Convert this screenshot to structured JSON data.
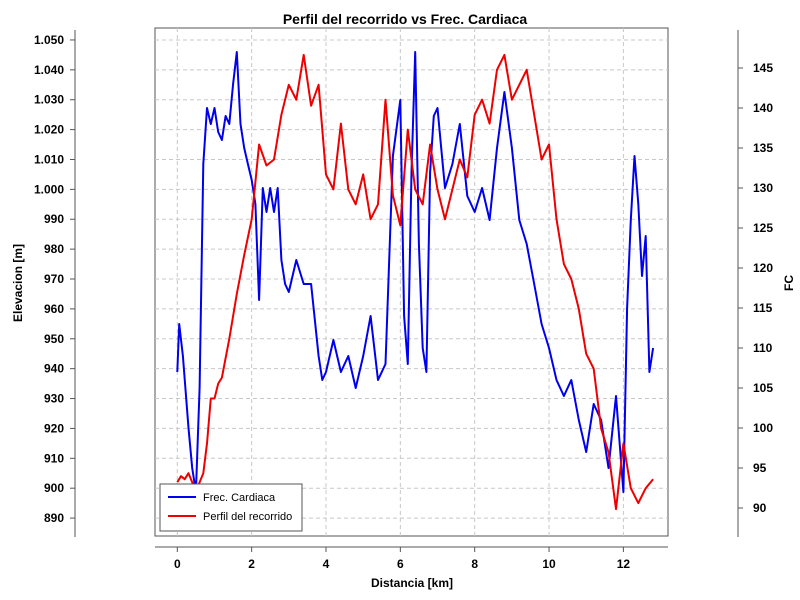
{
  "chart_data": {
    "type": "line",
    "title": "Perfil del recorrido vs Frec. Cardiaca",
    "xlabel": "Distancia [km]",
    "ylabel_left": "Elevacion [m]",
    "ylabel_right": "FC",
    "xlim": [
      -0.6,
      13.2
    ],
    "ylim_left": [
      884,
      1054
    ],
    "ylim_right": [
      86.5,
      150
    ],
    "x_ticks": [
      "0",
      "2",
      "4",
      "6",
      "8",
      "10",
      "12"
    ],
    "y_left_ticks": [
      "890",
      "900",
      "910",
      "920",
      "930",
      "940",
      "950",
      "960",
      "970",
      "980",
      "990",
      "1.000",
      "1.010",
      "1.020",
      "1.030",
      "1.040",
      "1.050"
    ],
    "y_right_ticks": [
      "90",
      "95",
      "100",
      "105",
      "110",
      "115",
      "120",
      "125",
      "130",
      "135",
      "140",
      "145"
    ],
    "grid": true,
    "legend_position": "bottom-left",
    "series": [
      {
        "name": "Frec. Cardiaca",
        "axis": "right",
        "color": "#0000ee",
        "x": [
          0,
          0.05,
          0.15,
          0.3,
          0.4,
          0.5,
          0.6,
          0.7,
          0.8,
          0.9,
          1.0,
          1.1,
          1.2,
          1.3,
          1.4,
          1.5,
          1.6,
          1.7,
          1.8,
          1.9,
          2.0,
          2.1,
          2.2,
          2.3,
          2.4,
          2.5,
          2.6,
          2.7,
          2.8,
          2.9,
          3.0,
          3.2,
          3.4,
          3.6,
          3.8,
          3.9,
          4.0,
          4.2,
          4.4,
          4.6,
          4.8,
          5.0,
          5.2,
          5.4,
          5.6,
          5.8,
          6.0,
          6.1,
          6.2,
          6.3,
          6.4,
          6.5,
          6.6,
          6.7,
          6.8,
          6.9,
          7.0,
          7.1,
          7.2,
          7.4,
          7.6,
          7.8,
          8.0,
          8.2,
          8.4,
          8.6,
          8.8,
          9.0,
          9.2,
          9.4,
          9.6,
          9.8,
          10.0,
          10.2,
          10.4,
          10.6,
          10.8,
          11.0,
          11.2,
          11.4,
          11.6,
          11.8,
          12.0,
          12.1,
          12.2,
          12.3,
          12.4,
          12.5,
          12.6,
          12.7,
          12.8
        ],
        "values": [
          107,
          113,
          109,
          100,
          95,
          92,
          105,
          133,
          140,
          138,
          140,
          137,
          136,
          139,
          138,
          143,
          147,
          138,
          135,
          133,
          131,
          128,
          116,
          130,
          127,
          130,
          127,
          130,
          121,
          118,
          117,
          121,
          118,
          118,
          109,
          106,
          107,
          111,
          107,
          109,
          105,
          109,
          114,
          106,
          108,
          134,
          141,
          114,
          108,
          132,
          147,
          123,
          110,
          107,
          132,
          139,
          140,
          135,
          130,
          133,
          138,
          129,
          127,
          130,
          126,
          135,
          142,
          135,
          126,
          123,
          118,
          113,
          110,
          106,
          104,
          106,
          101,
          97,
          103,
          101,
          95,
          104,
          92,
          115,
          126,
          134,
          128,
          119,
          124,
          107,
          110
        ]
      },
      {
        "name": "Perfil del recorrido",
        "axis": "left",
        "color": "#ee0000",
        "x": [
          0,
          0.1,
          0.2,
          0.3,
          0.4,
          0.5,
          0.6,
          0.7,
          0.8,
          0.9,
          1.0,
          1.1,
          1.2,
          1.4,
          1.6,
          1.8,
          2.0,
          2.2,
          2.4,
          2.6,
          2.8,
          3.0,
          3.2,
          3.4,
          3.6,
          3.8,
          4.0,
          4.2,
          4.4,
          4.6,
          4.8,
          5.0,
          5.2,
          5.4,
          5.6,
          5.8,
          6.0,
          6.2,
          6.4,
          6.6,
          6.8,
          7.0,
          7.2,
          7.4,
          7.6,
          7.8,
          8.0,
          8.2,
          8.4,
          8.6,
          8.8,
          9.0,
          9.2,
          9.4,
          9.6,
          9.8,
          10.0,
          10.2,
          10.4,
          10.6,
          10.8,
          11.0,
          11.2,
          11.4,
          11.6,
          11.8,
          12.0,
          12.2,
          12.4,
          12.6,
          12.8
        ],
        "values": [
          902,
          904,
          903,
          905,
          902,
          898,
          902,
          905,
          915,
          930,
          930,
          935,
          937,
          950,
          965,
          978,
          990,
          1015,
          1008,
          1010,
          1025,
          1035,
          1030,
          1045,
          1028,
          1035,
          1005,
          1000,
          1022,
          1000,
          995,
          1005,
          990,
          995,
          1030,
          998,
          988,
          1020,
          1000,
          995,
          1015,
          1000,
          990,
          1000,
          1010,
          1004,
          1025,
          1030,
          1022,
          1040,
          1045,
          1030,
          1035,
          1040,
          1025,
          1010,
          1015,
          990,
          975,
          970,
          960,
          945,
          940,
          920,
          912,
          893,
          915,
          900,
          895,
          900,
          903
        ]
      }
    ]
  }
}
